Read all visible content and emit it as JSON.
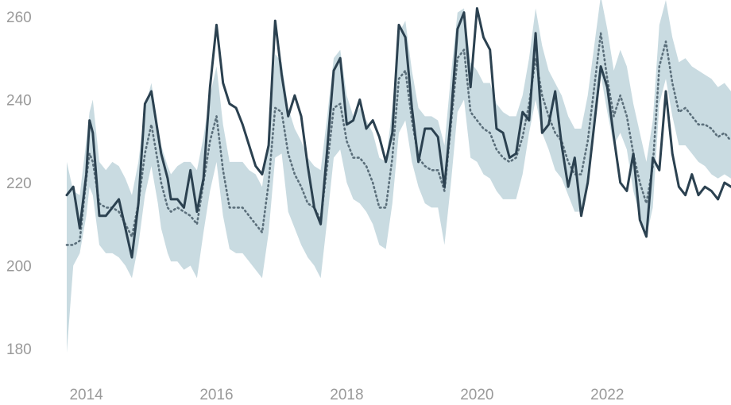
{
  "chart_data": {
    "type": "line",
    "title": "",
    "xlabel": "",
    "ylabel": "",
    "grid": false,
    "legend": "none",
    "xlim": [
      2013.7,
      2023.9
    ],
    "ylim": [
      176,
      264
    ],
    "x_ticks": [
      2014,
      2016,
      2018,
      2020,
      2022
    ],
    "x_tick_labels": [
      "2014",
      "2016",
      "2018",
      "2020",
      "2022"
    ],
    "y_ticks": [
      180,
      200,
      220,
      240,
      260
    ],
    "y_tick_labels": [
      "180",
      "200",
      "220",
      "240",
      "260"
    ],
    "colors": {
      "line": "#2b4150",
      "dotted": "#5b6f7b",
      "band": "#c9dbe1"
    },
    "series": [
      {
        "style": "solid",
        "x": [
          2013.7,
          2013.8,
          2013.9,
          2014.0,
          2014.05,
          2014.1,
          2014.2,
          2014.3,
          2014.4,
          2014.5,
          2014.6,
          2014.7,
          2014.8,
          2014.9,
          2015.0,
          2015.1,
          2015.15,
          2015.25,
          2015.3,
          2015.4,
          2015.5,
          2015.6,
          2015.7,
          2015.8,
          2015.9,
          2016.0,
          2016.1,
          2016.2,
          2016.3,
          2016.4,
          2016.5,
          2016.6,
          2016.7,
          2016.8,
          2016.9,
          2017.0,
          2017.1,
          2017.2,
          2017.3,
          2017.4,
          2017.5,
          2017.6,
          2017.7,
          2017.8,
          2017.9,
          2018.0,
          2018.1,
          2018.2,
          2018.3,
          2018.4,
          2018.5,
          2018.6,
          2018.7,
          2018.8,
          2018.9,
          2019.0,
          2019.1,
          2019.2,
          2019.3,
          2019.4,
          2019.5,
          2019.6,
          2019.7,
          2019.8,
          2019.9,
          2020.0,
          2020.1,
          2020.2,
          2020.3,
          2020.4,
          2020.5,
          2020.6,
          2020.7,
          2020.8,
          2020.9,
          2021.0,
          2021.1,
          2021.2,
          2021.3,
          2021.4,
          2021.5,
          2021.6,
          2021.7,
          2021.8,
          2021.9,
          2022.0,
          2022.1,
          2022.2,
          2022.3,
          2022.4,
          2022.5,
          2022.6,
          2022.7,
          2022.8,
          2022.9,
          2023.0,
          2023.1,
          2023.2,
          2023.3,
          2023.4,
          2023.5,
          2023.6,
          2023.7,
          2023.8,
          2023.9
        ],
        "y": [
          217,
          219,
          209,
          222,
          235,
          232,
          212,
          212,
          214,
          216,
          209,
          202,
          215,
          239,
          242,
          232,
          227,
          221,
          216,
          216,
          214,
          223,
          213,
          221,
          243,
          258,
          244,
          239,
          238,
          234,
          229,
          224,
          222,
          229,
          259,
          246,
          236,
          241,
          236,
          224,
          214,
          210,
          228,
          247,
          250,
          234,
          235,
          240,
          233,
          235,
          231,
          225,
          232,
          258,
          255,
          238,
          225,
          233,
          233,
          231,
          219,
          236,
          257,
          261,
          243,
          262,
          255,
          252,
          233,
          232,
          226,
          227,
          237,
          235,
          256,
          232,
          234,
          242,
          229,
          219,
          226,
          212,
          220,
          234,
          248,
          243,
          231,
          220,
          218,
          227,
          211,
          207,
          226,
          223,
          242,
          227,
          219,
          217,
          222,
          217,
          219,
          218,
          216,
          220,
          219
        ]
      },
      {
        "style": "dotted",
        "x": [
          2013.7,
          2013.8,
          2013.9,
          2014.0,
          2014.05,
          2014.1,
          2014.2,
          2014.3,
          2014.4,
          2014.5,
          2014.6,
          2014.7,
          2014.8,
          2014.9,
          2015.0,
          2015.1,
          2015.15,
          2015.25,
          2015.3,
          2015.4,
          2015.5,
          2015.6,
          2015.7,
          2015.8,
          2015.9,
          2016.0,
          2016.1,
          2016.2,
          2016.3,
          2016.4,
          2016.5,
          2016.6,
          2016.7,
          2016.8,
          2016.9,
          2017.0,
          2017.1,
          2017.2,
          2017.3,
          2017.4,
          2017.5,
          2017.6,
          2017.7,
          2017.8,
          2017.9,
          2018.0,
          2018.1,
          2018.2,
          2018.3,
          2018.4,
          2018.5,
          2018.6,
          2018.7,
          2018.8,
          2018.9,
          2019.0,
          2019.1,
          2019.2,
          2019.3,
          2019.4,
          2019.5,
          2019.6,
          2019.7,
          2019.8,
          2019.9,
          2020.0,
          2020.1,
          2020.2,
          2020.3,
          2020.4,
          2020.5,
          2020.6,
          2020.7,
          2020.8,
          2020.9,
          2021.0,
          2021.1,
          2021.2,
          2021.3,
          2021.4,
          2021.5,
          2021.6,
          2021.7,
          2021.8,
          2021.9,
          2022.0,
          2022.1,
          2022.2,
          2022.3,
          2022.4,
          2022.5,
          2022.6,
          2022.7,
          2022.8,
          2022.9,
          2023.0,
          2023.1,
          2023.2,
          2023.3,
          2023.4,
          2023.5,
          2023.6,
          2023.7,
          2023.8,
          2023.9
        ],
        "y": [
          205,
          205,
          206,
          221,
          227,
          225,
          215,
          214,
          214,
          213,
          210,
          207,
          215,
          227,
          234,
          225,
          220,
          214,
          213,
          214,
          213,
          212,
          210,
          220,
          230,
          236,
          223,
          214,
          214,
          214,
          212,
          210,
          208,
          220,
          238,
          237,
          227,
          222,
          219,
          215,
          214,
          211,
          224,
          238,
          239,
          230,
          226,
          226,
          224,
          220,
          214,
          214,
          226,
          245,
          247,
          235,
          226,
          224,
          223,
          223,
          218,
          234,
          250,
          252,
          237,
          235,
          233,
          232,
          228,
          226,
          225,
          226,
          231,
          239,
          250,
          241,
          236,
          232,
          230,
          225,
          222,
          222,
          230,
          243,
          256,
          245,
          236,
          241,
          236,
          227,
          220,
          215,
          224,
          248,
          254,
          244,
          237,
          238,
          236,
          234,
          234,
          233,
          231,
          232,
          230
        ]
      }
    ],
    "band": {
      "x": [
        2013.7,
        2013.8,
        2013.9,
        2014.0,
        2014.05,
        2014.1,
        2014.2,
        2014.3,
        2014.4,
        2014.5,
        2014.6,
        2014.7,
        2014.8,
        2014.9,
        2015.0,
        2015.1,
        2015.15,
        2015.25,
        2015.3,
        2015.4,
        2015.5,
        2015.6,
        2015.7,
        2015.8,
        2015.9,
        2016.0,
        2016.1,
        2016.2,
        2016.3,
        2016.4,
        2016.5,
        2016.6,
        2016.7,
        2016.8,
        2016.9,
        2017.0,
        2017.1,
        2017.2,
        2017.3,
        2017.4,
        2017.5,
        2017.6,
        2017.7,
        2017.8,
        2017.9,
        2018.0,
        2018.1,
        2018.2,
        2018.3,
        2018.4,
        2018.5,
        2018.6,
        2018.7,
        2018.8,
        2018.9,
        2019.0,
        2019.1,
        2019.2,
        2019.3,
        2019.4,
        2019.5,
        2019.6,
        2019.7,
        2019.8,
        2019.9,
        2020.0,
        2020.1,
        2020.2,
        2020.3,
        2020.4,
        2020.5,
        2020.6,
        2020.7,
        2020.8,
        2020.9,
        2021.0,
        2021.1,
        2021.2,
        2021.3,
        2021.4,
        2021.5,
        2021.6,
        2021.7,
        2021.8,
        2021.9,
        2022.0,
        2022.1,
        2022.2,
        2022.3,
        2022.4,
        2022.5,
        2022.6,
        2022.7,
        2022.8,
        2022.9,
        2023.0,
        2023.1,
        2023.2,
        2023.3,
        2023.4,
        2023.5,
        2023.6,
        2023.7,
        2023.8,
        2023.9
      ],
      "low": [
        179,
        200,
        203,
        212,
        219,
        217,
        205,
        203,
        203,
        202,
        200,
        197,
        205,
        217,
        224,
        215,
        209,
        203,
        201,
        201,
        199,
        200,
        197,
        208,
        218,
        225,
        212,
        204,
        203,
        203,
        201,
        199,
        197,
        208,
        226,
        227,
        213,
        209,
        205,
        202,
        200,
        197,
        211,
        226,
        228,
        220,
        216,
        215,
        213,
        210,
        205,
        204,
        215,
        232,
        235,
        225,
        219,
        215,
        214,
        214,
        205,
        220,
        237,
        240,
        226,
        225,
        222,
        221,
        218,
        216,
        216,
        216,
        222,
        232,
        240,
        232,
        228,
        223,
        221,
        217,
        213,
        213,
        219,
        234,
        246,
        237,
        229,
        232,
        228,
        218,
        212,
        207,
        214,
        239,
        245,
        236,
        229,
        229,
        227,
        225,
        224,
        222,
        221,
        222,
        221
      ],
      "high": [
        225,
        218,
        217,
        230,
        237,
        240,
        225,
        223,
        225,
        224,
        221,
        217,
        225,
        238,
        244,
        234,
        229,
        224,
        222,
        224,
        225,
        225,
        223,
        231,
        241,
        248,
        234,
        225,
        225,
        225,
        223,
        222,
        219,
        231,
        251,
        249,
        238,
        233,
        230,
        226,
        224,
        223,
        236,
        250,
        252,
        241,
        236,
        238,
        235,
        232,
        226,
        225,
        238,
        256,
        259,
        247,
        238,
        236,
        236,
        235,
        229,
        246,
        261,
        262,
        249,
        247,
        244,
        244,
        239,
        237,
        236,
        236,
        241,
        250,
        262,
        253,
        247,
        244,
        241,
        236,
        233,
        233,
        241,
        253,
        265,
        257,
        247,
        252,
        248,
        239,
        232,
        225,
        235,
        258,
        264,
        255,
        249,
        250,
        248,
        247,
        246,
        245,
        243,
        244,
        242
      ]
    }
  }
}
